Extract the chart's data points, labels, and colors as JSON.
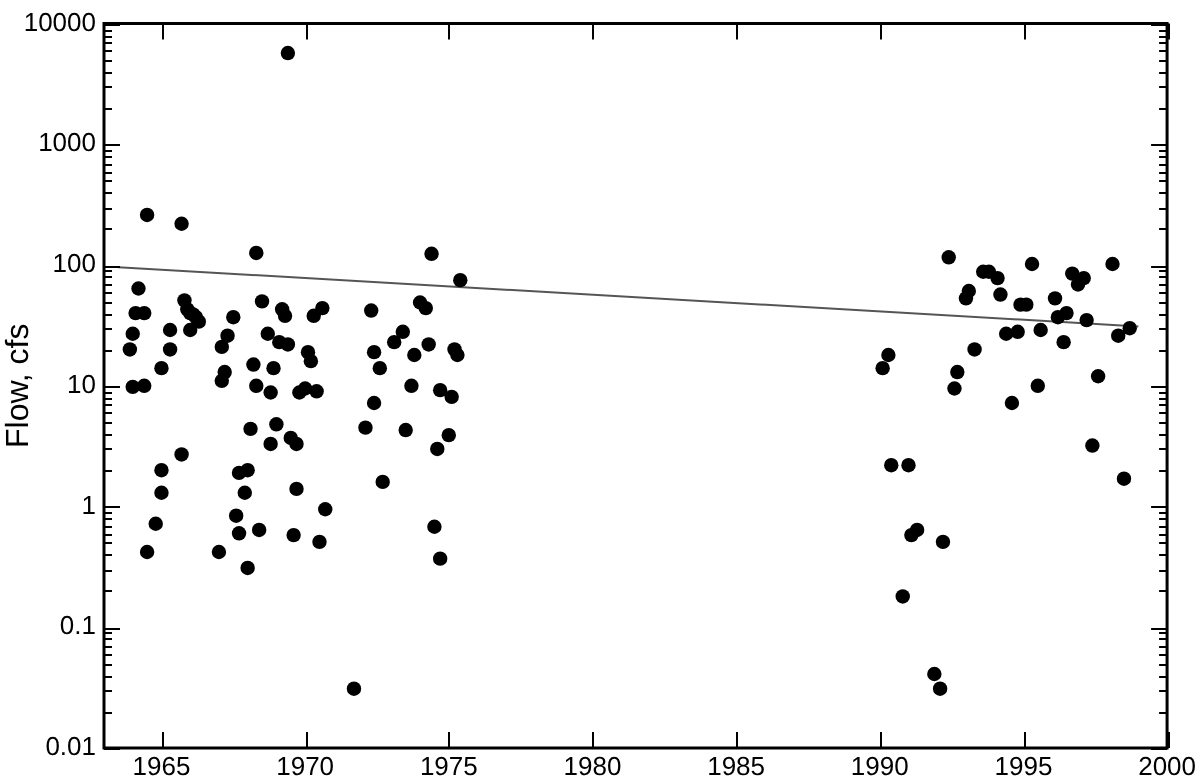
{
  "chart_data": {
    "type": "scatter",
    "ylabel": "Flow, cfs",
    "log": "y",
    "xlim": [
      1963,
      2000
    ],
    "xticks": [
      1965,
      1970,
      1975,
      1980,
      1985,
      1990,
      1995,
      2000
    ],
    "ylim": [
      0.01,
      10000
    ],
    "yticks": [
      0.01,
      {
        "value": 0.02,
        "label": null
      },
      {
        "value": 0.03,
        "label": null
      },
      {
        "value": 0.04,
        "label": null
      },
      {
        "value": 0.05,
        "label": null
      },
      {
        "value": 0.06,
        "label": null
      },
      {
        "value": 0.07,
        "label": null
      },
      {
        "value": 0.08,
        "label": null
      },
      {
        "value": 0.09,
        "label": null
      },
      0.1,
      {
        "value": 0.2,
        "label": null
      },
      {
        "value": 0.3,
        "label": null
      },
      {
        "value": 0.4,
        "label": null
      },
      {
        "value": 0.5,
        "label": null
      },
      {
        "value": 0.6,
        "label": null
      },
      {
        "value": 0.7,
        "label": null
      },
      {
        "value": 0.8,
        "label": null
      },
      {
        "value": 0.9,
        "label": null
      },
      1,
      {
        "value": 2,
        "label": null
      },
      {
        "value": 3,
        "label": null
      },
      {
        "value": 4,
        "label": null
      },
      {
        "value": 5,
        "label": null
      },
      {
        "value": 6,
        "label": null
      },
      {
        "value": 7,
        "label": null
      },
      {
        "value": 8,
        "label": null
      },
      {
        "value": 9,
        "label": null
      },
      10,
      {
        "value": 20,
        "label": null
      },
      {
        "value": 30,
        "label": null
      },
      {
        "value": 40,
        "label": null
      },
      {
        "value": 50,
        "label": null
      },
      {
        "value": 60,
        "label": null
      },
      {
        "value": 70,
        "label": null
      },
      {
        "value": 80,
        "label": null
      },
      {
        "value": 90,
        "label": null
      },
      100,
      {
        "value": 200,
        "label": null
      },
      {
        "value": 300,
        "label": null
      },
      {
        "value": 400,
        "label": null
      },
      {
        "value": 500,
        "label": null
      },
      {
        "value": 600,
        "label": null
      },
      {
        "value": 700,
        "label": null
      },
      {
        "value": 800,
        "label": null
      },
      {
        "value": 900,
        "label": null
      },
      1000,
      {
        "value": 2000,
        "label": null
      },
      {
        "value": 3000,
        "label": null
      },
      {
        "value": 4000,
        "label": null
      },
      {
        "value": 5000,
        "label": null
      },
      {
        "value": 6000,
        "label": null
      },
      {
        "value": 7000,
        "label": null
      },
      {
        "value": 8000,
        "label": null
      },
      {
        "value": 9000,
        "label": null
      },
      10000
    ],
    "series": [
      {
        "color": "#000000",
        "marker": "circle",
        "x": [
          1964.5,
          1965.7,
          1968.3,
          1964.2,
          1964.1,
          1964.4,
          1965.8,
          1965.9,
          1966.0,
          1966.1,
          1966.2,
          1966.3,
          1964.0,
          1963.9,
          1965.3,
          1965.3,
          1965.0,
          1964.0,
          1964.4,
          1966.0,
          1967.5,
          1967.3,
          1967.1,
          1967.2,
          1967.1,
          1968.5,
          1969.2,
          1969.3,
          1968.7,
          1969.1,
          1969.4,
          1970.3,
          1970.6,
          1970.1,
          1970.2,
          1968.2,
          1968.9,
          1968.3,
          1968.8,
          1969.8,
          1970.0,
          1970.4,
          1965.7,
          1965.0,
          1965.0,
          1964.8,
          1964.5,
          1968.1,
          1969.0,
          1968.8,
          1969.5,
          1969.7,
          1967.7,
          1968.0,
          1967.9,
          1969.7,
          1970.7,
          1967.6,
          1967.7,
          1968.4,
          1969.6,
          1970.5,
          1967.0,
          1968.0,
          1969.4,
          1974.4,
          1975.4,
          1972.3,
          1974.0,
          1974.2,
          1973.4,
          1973.1,
          1972.4,
          1972.6,
          1973.8,
          1974.3,
          1975.2,
          1975.3,
          1973.7,
          1972.4,
          1974.7,
          1975.1,
          1972.1,
          1973.5,
          1975.0,
          1974.6,
          1972.7,
          1974.5,
          1974.7,
          1971.7,
          1992.4,
          1993.6,
          1993.8,
          1994.1,
          1995.3,
          1996.7,
          1997.1,
          1996.9,
          1998.1,
          1993.1,
          1993.0,
          1994.2,
          1994.9,
          1995.1,
          1996.1,
          1996.2,
          1996.5,
          1997.2,
          1994.4,
          1994.8,
          1995.6,
          1996.4,
          1998.3,
          1998.7,
          1990.3,
          1990.1,
          1993.3,
          1992.7,
          1992.6,
          1995.5,
          1994.6,
          1997.6,
          1990.4,
          1991.0,
          1997.4,
          1998.5,
          1991.1,
          1991.3,
          1992.2,
          1990.8,
          1991.9,
          1992.1
        ],
        "values": [
          260,
          220,
          126,
          64,
          40,
          40,
          51,
          43,
          40,
          39,
          37,
          34,
          27,
          20,
          29,
          20,
          14,
          9.8,
          10,
          29,
          37,
          26,
          21,
          13,
          11,
          50,
          43,
          38,
          27,
          23,
          22,
          38,
          44,
          19,
          16,
          15,
          14,
          10,
          8.8,
          8.8,
          9.5,
          9,
          2.7,
          2.0,
          1.3,
          0.72,
          0.42,
          4.4,
          4.8,
          3.3,
          3.7,
          3.3,
          1.9,
          2.0,
          1.3,
          1.4,
          0.95,
          0.84,
          0.6,
          0.64,
          0.58,
          0.51,
          0.42,
          0.31,
          5700,
          124,
          75,
          42,
          49,
          44,
          28,
          23,
          19,
          14,
          18,
          22,
          20,
          18,
          10,
          7.2,
          9.2,
          8.1,
          4.5,
          4.3,
          3.9,
          3.0,
          1.6,
          0.68,
          0.37,
          0.031,
          116,
          88,
          88,
          78,
          102,
          85,
          78,
          69,
          102,
          61,
          53,
          57,
          47,
          47,
          53,
          37,
          40,
          35,
          27,
          28,
          29,
          23,
          26,
          30,
          18,
          14,
          20,
          13,
          9.5,
          10,
          7.2,
          12,
          2.2,
          2.2,
          3.2,
          1.7,
          0.58,
          0.64,
          0.51,
          0.18,
          0.041,
          0.031
        ]
      },
      {
        "type": "line",
        "marker": "none",
        "color": "#555555",
        "x": [
          1963.5,
          1999
        ],
        "values": [
          96,
          31
        ]
      }
    ]
  }
}
